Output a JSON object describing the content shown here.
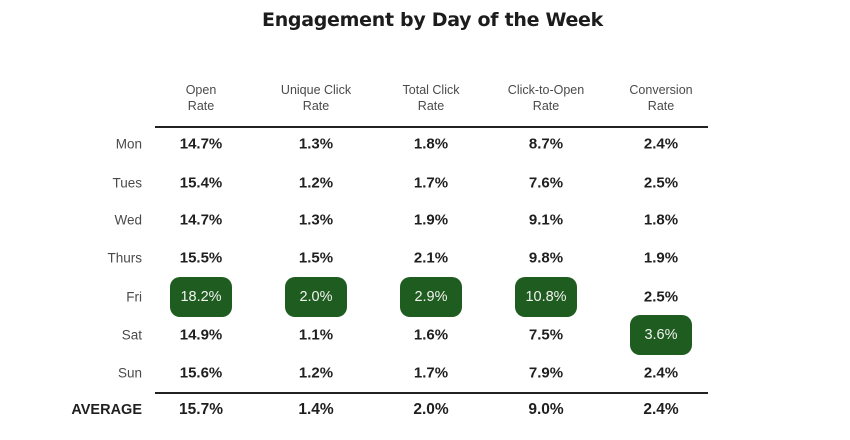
{
  "chart_data": {
    "type": "table",
    "title": "Engagement by Day of the Week",
    "columns": [
      [
        "Open",
        "Rate"
      ],
      [
        "Unique Click",
        "Rate"
      ],
      [
        "Total Click",
        "Rate"
      ],
      [
        "Click-to-Open",
        "Rate"
      ],
      [
        "Conversion",
        "Rate"
      ]
    ],
    "rows": [
      {
        "label": "Mon",
        "values": [
          "14.7%",
          "1.3%",
          "1.8%",
          "8.7%",
          "2.4%"
        ]
      },
      {
        "label": "Tues",
        "values": [
          "15.4%",
          "1.2%",
          "1.7%",
          "7.6%",
          "2.5%"
        ]
      },
      {
        "label": "Wed",
        "values": [
          "14.7%",
          "1.3%",
          "1.9%",
          "9.1%",
          "1.8%"
        ]
      },
      {
        "label": "Thurs",
        "values": [
          "15.5%",
          "1.5%",
          "2.1%",
          "9.8%",
          "1.9%"
        ]
      },
      {
        "label": "Fri",
        "values": [
          "18.2%",
          "2.0%",
          "2.9%",
          "10.8%",
          "2.5%"
        ]
      },
      {
        "label": "Sat",
        "values": [
          "14.9%",
          "1.1%",
          "1.6%",
          "7.5%",
          "3.6%"
        ]
      },
      {
        "label": "Sun",
        "values": [
          "15.6%",
          "1.2%",
          "1.7%",
          "7.9%",
          "2.4%"
        ]
      }
    ],
    "average": {
      "label": "AVERAGE",
      "values": [
        "15.7%",
        "1.4%",
        "2.0%",
        "9.0%",
        "2.4%"
      ]
    },
    "highlighted_cells": [
      [
        4,
        0
      ],
      [
        4,
        1
      ],
      [
        4,
        2
      ],
      [
        4,
        3
      ],
      [
        5,
        4
      ]
    ],
    "highlight_color": "#1f5c1f"
  }
}
